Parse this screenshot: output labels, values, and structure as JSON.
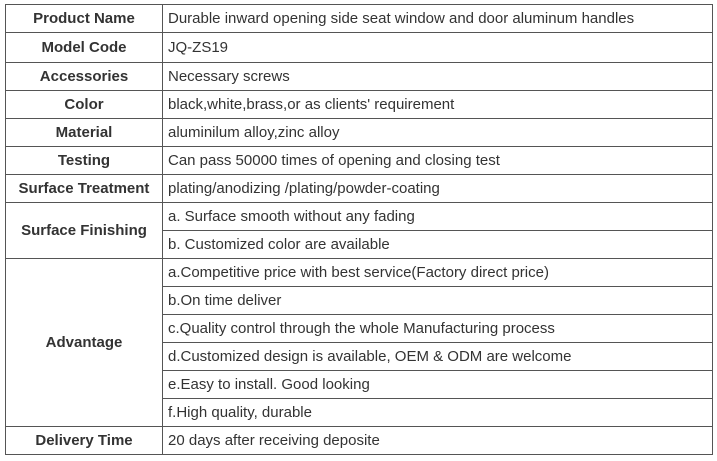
{
  "rows": [
    {
      "label": "Product Name",
      "values": [
        "Durable inward opening side seat window and door aluminum handles"
      ]
    },
    {
      "label": "Model Code",
      "values": [
        "JQ-ZS19"
      ]
    },
    {
      "label": "Accessories",
      "values": [
        "Necessary screws"
      ]
    },
    {
      "label": "Color",
      "values": [
        "black,white,brass,or as clients' requirement"
      ]
    },
    {
      "label": "Material",
      "values": [
        "aluminilum alloy,zinc alloy"
      ]
    },
    {
      "label": "Testing",
      "values": [
        "Can pass 50000 times of opening and closing test"
      ]
    },
    {
      "label": "Surface Treatment",
      "values": [
        "plating/anodizing /plating/powder-coating"
      ]
    },
    {
      "label": "Surface Finishing",
      "values": [
        "a. Surface smooth without any fading",
        "b. Customized color are available"
      ]
    },
    {
      "label": "Advantage",
      "values": [
        "a.Competitive price with best service(Factory direct price)",
        "b.On time deliver",
        "c.Quality control through the whole Manufacturing process",
        "d.Customized design is available, OEM & ODM are welcome",
        "e.Easy to install. Good looking",
        "f.High quality, durable"
      ]
    },
    {
      "label": "Delivery Time",
      "values": [
        "20 days after receiving deposite"
      ]
    }
  ]
}
